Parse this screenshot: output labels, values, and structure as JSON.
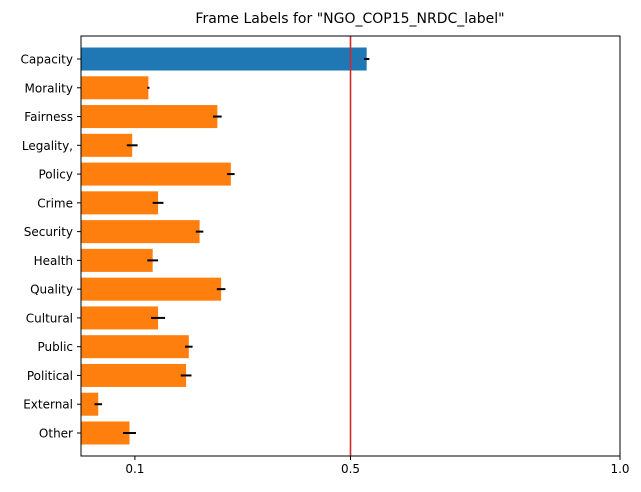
{
  "chart_data": {
    "type": "bar",
    "orientation": "horizontal",
    "title": "Frame Labels for \"NGO_COP15_NRDC_label\"",
    "xlabel": "",
    "ylabel": "",
    "xlim": [
      0.0,
      1.0
    ],
    "x_ticks": [
      {
        "value": 0.1,
        "label": "0.1"
      },
      {
        "value": 0.5,
        "label": "0.5"
      },
      {
        "value": 1.0,
        "label": "1.0"
      }
    ],
    "categories": [
      "Capacity",
      "Morality",
      "Fairness",
      "Legality,",
      "Policy",
      "Crime",
      "Security",
      "Health",
      "Quality",
      "Cultural",
      "Public",
      "Political",
      "External",
      "Other"
    ],
    "values": [
      0.53,
      0.125,
      0.253,
      0.095,
      0.278,
      0.143,
      0.22,
      0.133,
      0.26,
      0.143,
      0.2,
      0.195,
      0.032,
      0.09
    ],
    "errors": [
      0.005,
      0.002,
      0.008,
      0.01,
      0.007,
      0.01,
      0.007,
      0.01,
      0.008,
      0.013,
      0.007,
      0.01,
      0.007,
      0.012
    ],
    "bar_colors": [
      "#1f77b4",
      "#ff7f0e",
      "#ff7f0e",
      "#ff7f0e",
      "#ff7f0e",
      "#ff7f0e",
      "#ff7f0e",
      "#ff7f0e",
      "#ff7f0e",
      "#ff7f0e",
      "#ff7f0e",
      "#ff7f0e",
      "#ff7f0e",
      "#ff7f0e"
    ],
    "reference_line": {
      "value": 0.5,
      "color": "#d62728"
    },
    "grid": false,
    "legend": "none"
  }
}
